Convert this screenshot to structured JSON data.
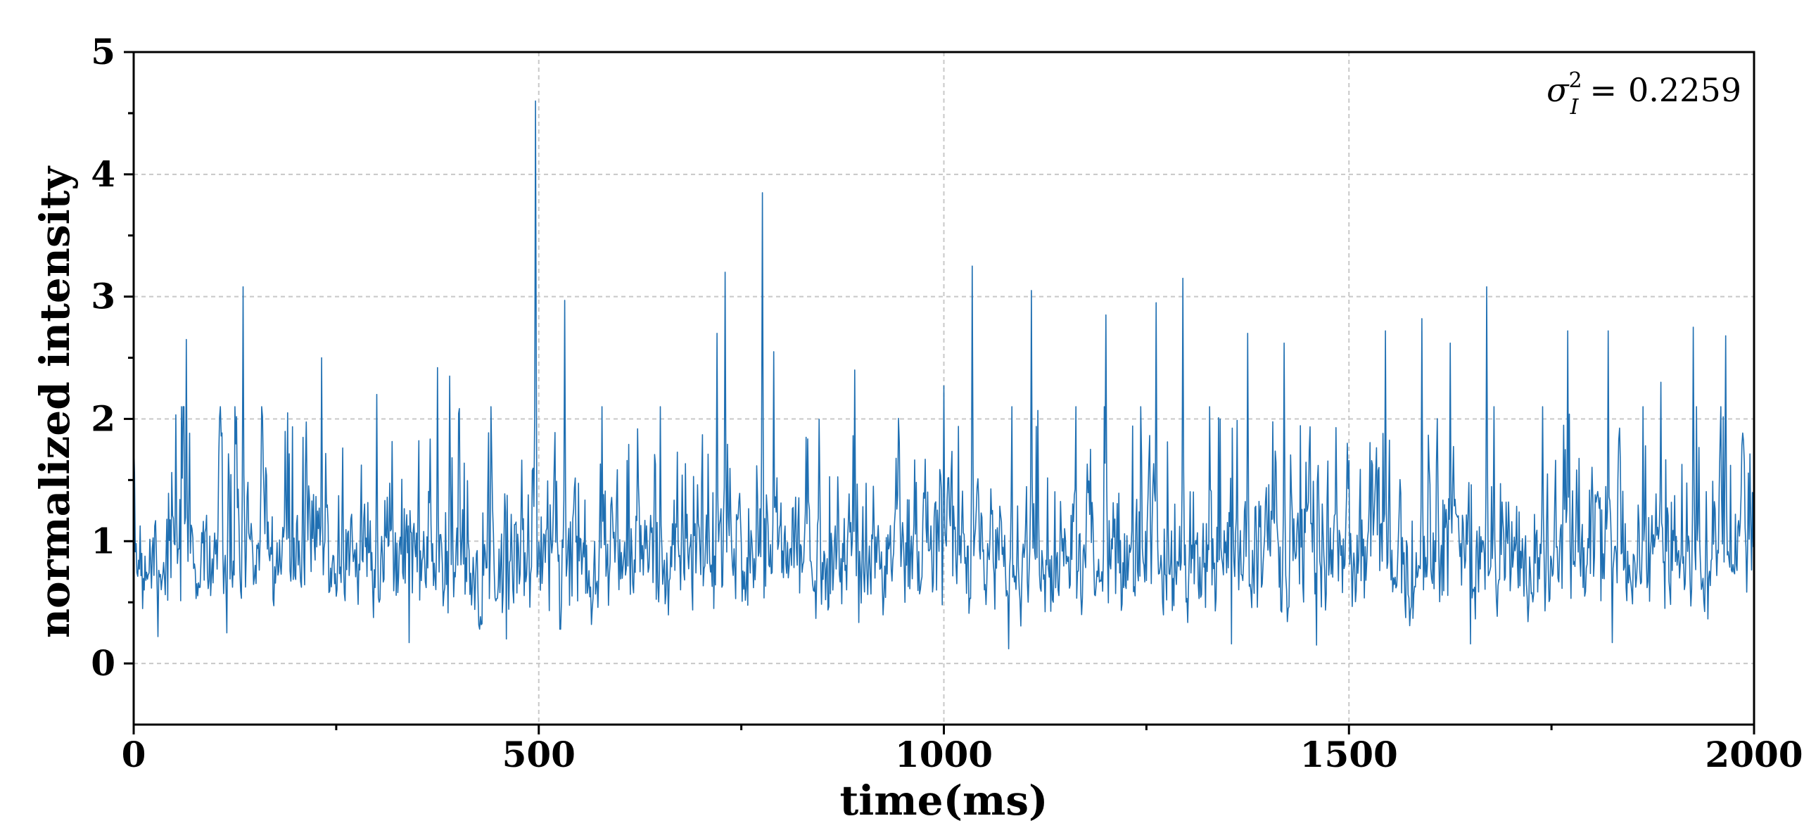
{
  "chart_data": {
    "type": "line",
    "title": "",
    "xlabel": "time(ms)",
    "ylabel": "normalized intensity",
    "xlim": [
      0,
      2000
    ],
    "ylim": [
      -0.5,
      5
    ],
    "x_ticks": [
      "0",
      "500",
      "1000",
      "1500",
      "2000"
    ],
    "y_ticks": [
      "0",
      "1",
      "2",
      "3",
      "4",
      "5"
    ],
    "grid": true,
    "annotation": {
      "symbol": "σ",
      "subscript": "I",
      "superscript": "2",
      "equals": "=",
      "value": "0.2259"
    },
    "series": [
      {
        "color": "#1f6fb2",
        "description_stats": {
          "mean": 1.0,
          "variance": 0.2259,
          "min": 0.12,
          "max": 4.6
        },
        "peaks": [
          {
            "x": 0,
            "y": 1.85
          },
          {
            "x": 65,
            "y": 2.65
          },
          {
            "x": 135,
            "y": 3.08
          },
          {
            "x": 190,
            "y": 2.05
          },
          {
            "x": 232,
            "y": 2.5
          },
          {
            "x": 300,
            "y": 2.2
          },
          {
            "x": 340,
            "y": 2.5
          },
          {
            "x": 375,
            "y": 2.42
          },
          {
            "x": 390,
            "y": 2.35
          },
          {
            "x": 460,
            "y": 2.75
          },
          {
            "x": 496,
            "y": 4.6
          },
          {
            "x": 532,
            "y": 2.97
          },
          {
            "x": 578,
            "y": 2.1
          },
          {
            "x": 720,
            "y": 2.7
          },
          {
            "x": 730,
            "y": 3.2
          },
          {
            "x": 776,
            "y": 3.85
          },
          {
            "x": 790,
            "y": 2.55
          },
          {
            "x": 890,
            "y": 2.4
          },
          {
            "x": 1000,
            "y": 2.27
          },
          {
            "x": 1035,
            "y": 3.25
          },
          {
            "x": 1108,
            "y": 3.05
          },
          {
            "x": 1200,
            "y": 2.85
          },
          {
            "x": 1262,
            "y": 2.95
          },
          {
            "x": 1295,
            "y": 3.15
          },
          {
            "x": 1375,
            "y": 2.7
          },
          {
            "x": 1420,
            "y": 2.62
          },
          {
            "x": 1545,
            "y": 2.72
          },
          {
            "x": 1590,
            "y": 2.82
          },
          {
            "x": 1625,
            "y": 2.62
          },
          {
            "x": 1670,
            "y": 3.08
          },
          {
            "x": 1770,
            "y": 2.72
          },
          {
            "x": 1820,
            "y": 2.72
          },
          {
            "x": 1885,
            "y": 2.3
          },
          {
            "x": 1925,
            "y": 2.75
          },
          {
            "x": 1965,
            "y": 2.68
          }
        ],
        "troughs": [
          {
            "x": 30,
            "y": 0.22
          },
          {
            "x": 115,
            "y": 0.25
          },
          {
            "x": 340,
            "y": 0.17
          },
          {
            "x": 460,
            "y": 0.2
          },
          {
            "x": 1080,
            "y": 0.12
          },
          {
            "x": 1355,
            "y": 0.16
          },
          {
            "x": 1460,
            "y": 0.15
          },
          {
            "x": 1650,
            "y": 0.16
          },
          {
            "x": 1825,
            "y": 0.17
          }
        ],
        "samples": 2000,
        "seed": 7
      }
    ]
  }
}
